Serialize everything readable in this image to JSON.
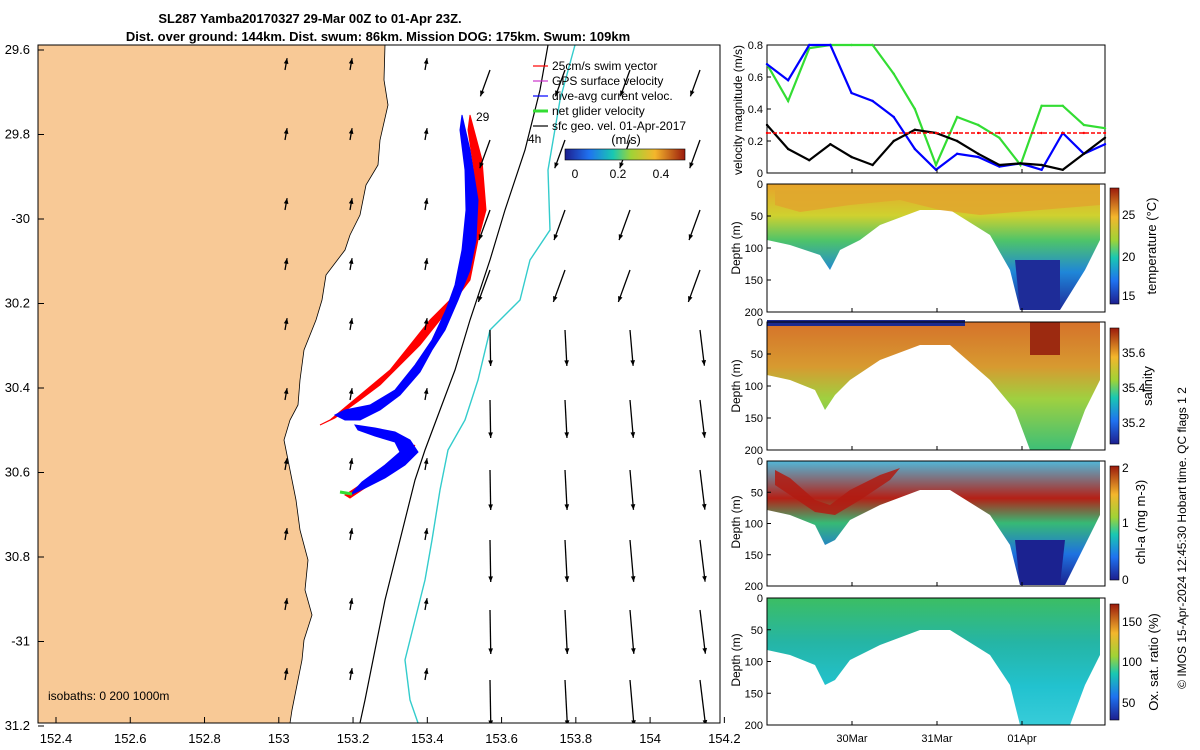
{
  "title": {
    "line1": "SL287 Yamba20170327 29-Mar 00Z to 01-Apr 23Z.",
    "line2": "Dist. over ground: 144km. Dist. swum: 86km. Mission DOG: 175km. Swum: 109km"
  },
  "colors": {
    "land": "#f8c996",
    "swim_vector": "#ff0000",
    "gps_velocity": "#cc33cc",
    "dive_avg": "#0000ff",
    "net_glider": "#33dd33",
    "sfc_geo": "#000000",
    "isobath_200": "#000000",
    "isobath_1000": "#33cccc"
  },
  "map": {
    "lon_ticks": [
      "152.4",
      "152.6",
      "152.8",
      "153",
      "153.2",
      "153.4",
      "153.6",
      "153.8",
      "154",
      "154.2"
    ],
    "lat_ticks": [
      "29.6",
      "29.8",
      "-30",
      "30.2",
      "30.4",
      "30.6",
      "30.8",
      "-31",
      "31.2"
    ],
    "isobaths_label": "isobaths: 0   200  1000m",
    "legend": [
      "25cm/s swim vector",
      "GPS surface velocity",
      "dive-avg current veloc.",
      "net glider velocity",
      "sfc geo. vel. 01-Apr-2017"
    ],
    "annotations": {
      "day_label": "29",
      "hour_label": "4h"
    },
    "colorbar": {
      "label": "(m/s)",
      "ticks": [
        "0",
        "0.2",
        "0.4"
      ],
      "range": [
        0,
        0.5
      ]
    }
  },
  "panels": {
    "velocity": {
      "ylabel": "velocity magnitude (m/s)",
      "ticks": [
        "0",
        "0.2",
        "0.4",
        "0.6",
        "0.8"
      ]
    },
    "temperature": {
      "cb_label": "temperature (°C)",
      "cb_ticks": [
        "25",
        "20",
        "15"
      ],
      "ylabel": "Depth (m)"
    },
    "salinity": {
      "cb_label": "salinity",
      "cb_ticks": [
        "35.6",
        "35.4",
        "35.2"
      ],
      "ylabel": "Depth (m)"
    },
    "chla": {
      "cb_label": "chl-a (mg m-3)",
      "cb_ticks": [
        "2",
        "1",
        "0"
      ],
      "ylabel": "Depth (m)"
    },
    "oxygen": {
      "cb_label": "Ox. sat. ratio (%)",
      "cb_ticks": [
        "150",
        "100",
        "50"
      ],
      "ylabel": "Depth (m)"
    },
    "depth_ticks": [
      "0",
      "50",
      "100",
      "150",
      "200"
    ],
    "time_ticks": [
      "30Mar",
      "31Mar",
      "01Apr"
    ],
    "side_note": "© IMOS 15-Apr-2024 12:45:30 Hobart time. QC flags 1  2"
  },
  "chart_data": [
    {
      "type": "line",
      "title": "",
      "ylabel": "velocity magnitude (m/s)",
      "ylim": [
        0,
        0.8
      ],
      "x_ticks": [
        "30Mar",
        "31Mar",
        "01Apr"
      ],
      "x": [
        0,
        0.25,
        0.5,
        0.75,
        1.0,
        1.25,
        1.5,
        1.75,
        2.0,
        2.25,
        2.5,
        2.75,
        3.0,
        3.25,
        3.5,
        3.75,
        4.0
      ],
      "series": [
        {
          "name": "net glider velocity",
          "color": "#33dd33",
          "values": [
            0.68,
            0.45,
            0.78,
            0.8,
            0.8,
            0.8,
            0.62,
            0.4,
            0.05,
            0.35,
            0.3,
            0.22,
            0.05,
            0.42,
            0.42,
            0.3,
            0.28
          ]
        },
        {
          "name": "dive-avg current veloc.",
          "color": "#0000ff",
          "values": [
            0.68,
            0.58,
            0.8,
            0.8,
            0.5,
            0.45,
            0.35,
            0.15,
            0.02,
            0.12,
            0.1,
            0.04,
            0.06,
            0.02,
            0.25,
            0.12,
            0.18
          ]
        },
        {
          "name": "sfc geo. vel. 01-Apr-2017",
          "color": "#000000",
          "values": [
            0.3,
            0.15,
            0.08,
            0.18,
            0.1,
            0.05,
            0.2,
            0.27,
            0.25,
            0.2,
            0.12,
            0.05,
            0.06,
            0.05,
            0.02,
            0.12,
            0.22
          ]
        },
        {
          "name": "25cm/s swim vector",
          "color": "#ff0000",
          "values": [
            0.25,
            0.25,
            0.25,
            0.25,
            0.25,
            0.25,
            0.25,
            0.25,
            0.25,
            0.25,
            0.25,
            0.25,
            0.25,
            0.25,
            0.25,
            0.25,
            0.25
          ]
        }
      ]
    },
    {
      "type": "heatmap",
      "ylabel": "Depth (m)",
      "ylim": [
        200,
        0
      ],
      "colorbar_label": "temperature (°C)",
      "colorbar_range": [
        13,
        28
      ],
      "x_ticks": [
        "30Mar",
        "31Mar",
        "01Apr"
      ]
    },
    {
      "type": "heatmap",
      "ylabel": "Depth (m)",
      "ylim": [
        200,
        0
      ],
      "colorbar_label": "salinity",
      "colorbar_range": [
        35.1,
        35.7
      ],
      "x_ticks": [
        "30Mar",
        "31Mar",
        "01Apr"
      ]
    },
    {
      "type": "heatmap",
      "ylabel": "Depth (m)",
      "ylim": [
        200,
        0
      ],
      "colorbar_label": "chl-a (mg m-3)",
      "colorbar_range": [
        0,
        2
      ],
      "x_ticks": [
        "30Mar",
        "31Mar",
        "01Apr"
      ]
    },
    {
      "type": "heatmap",
      "ylabel": "Depth (m)",
      "ylim": [
        200,
        0
      ],
      "colorbar_label": "Ox. sat. ratio (%)",
      "colorbar_range": [
        25,
        175
      ],
      "x_ticks": [
        "30Mar",
        "31Mar",
        "01Apr"
      ]
    }
  ]
}
